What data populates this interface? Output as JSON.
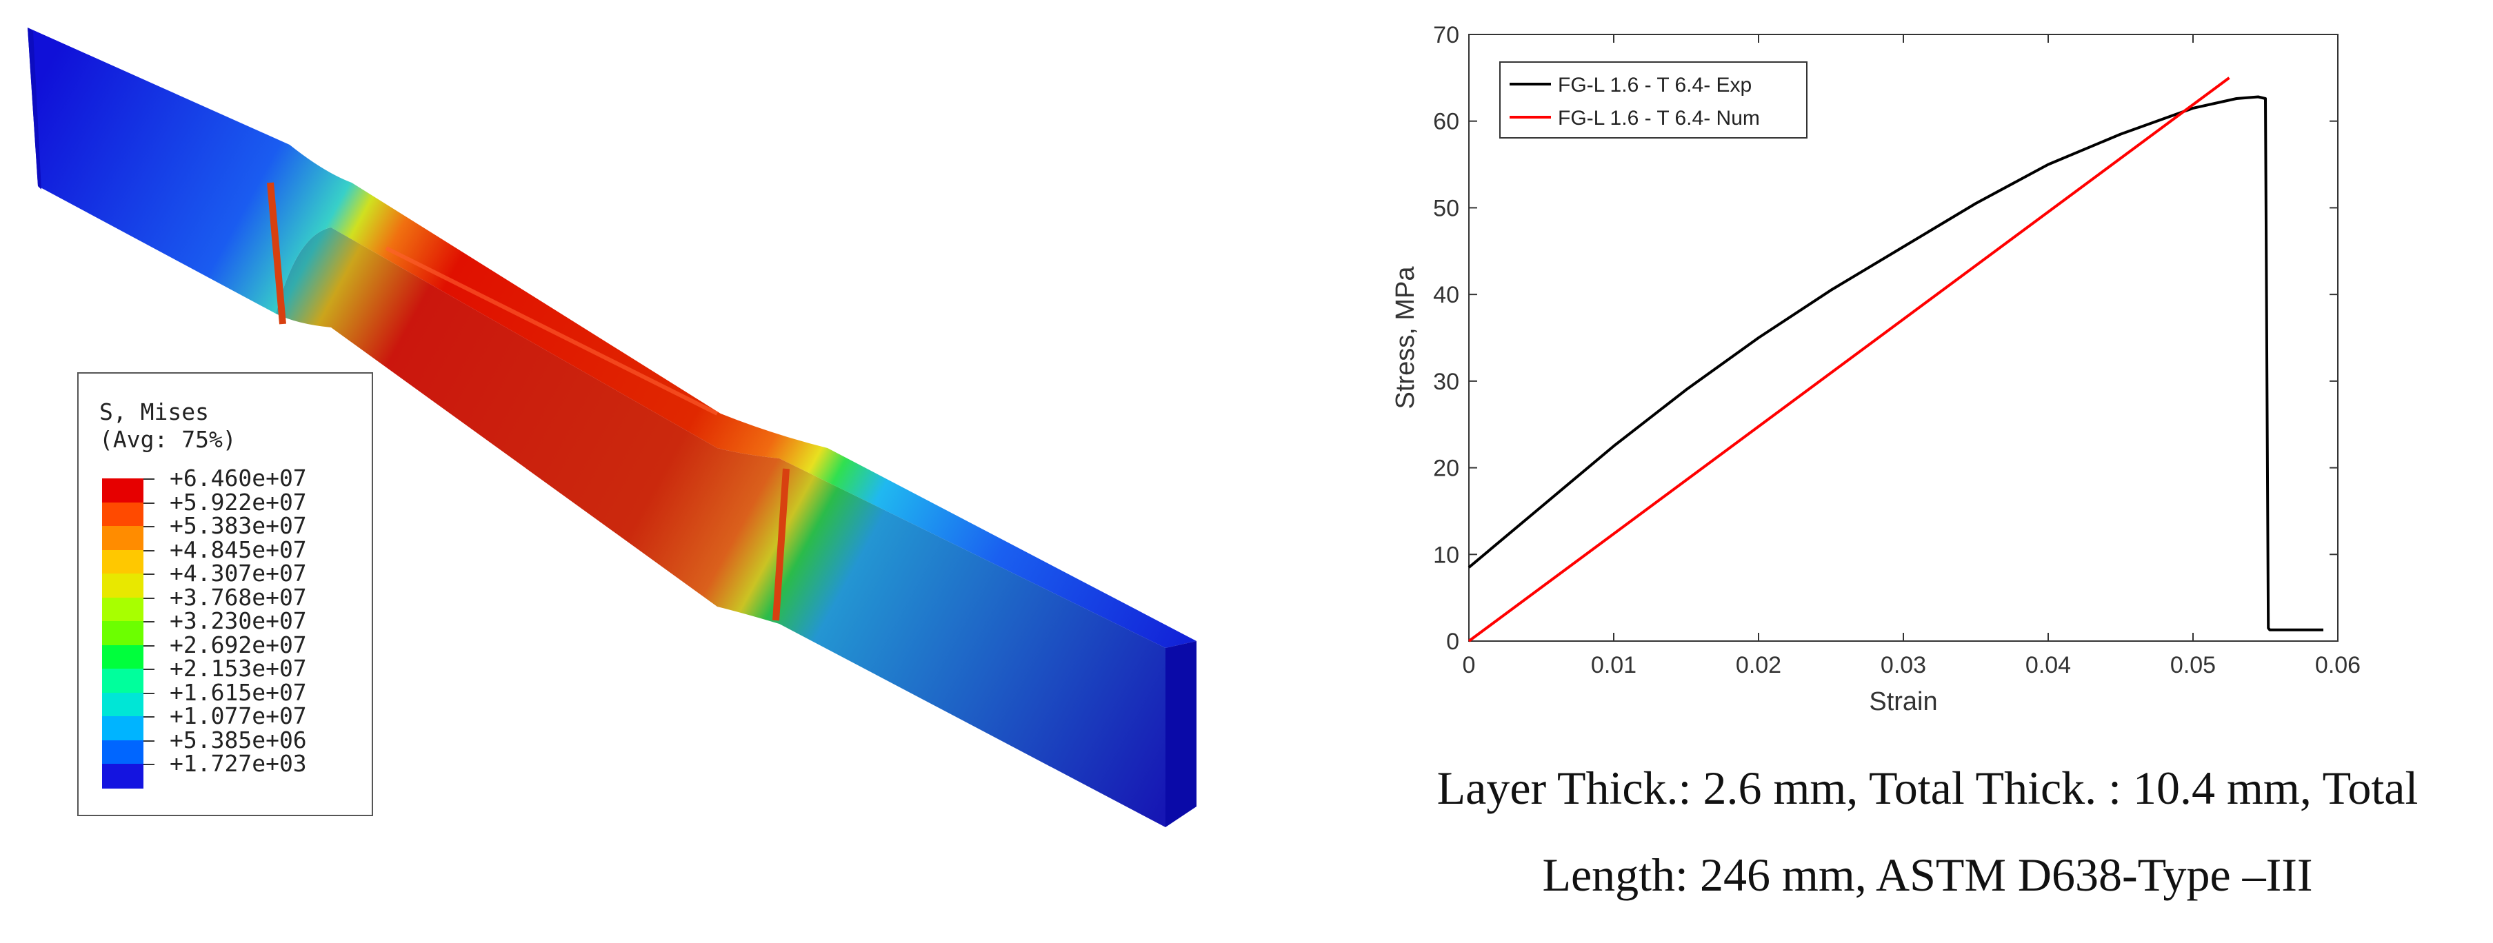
{
  "contour_legend": {
    "title_line1": "S, Mises",
    "title_line2": "(Avg: 75%)",
    "levels": [
      "+6.460e+07",
      "+5.922e+07",
      "+5.383e+07",
      "+4.845e+07",
      "+4.307e+07",
      "+3.768e+07",
      "+3.230e+07",
      "+2.692e+07",
      "+2.153e+07",
      "+1.615e+07",
      "+1.077e+07",
      "+5.385e+06",
      "+1.727e+03"
    ],
    "colors": [
      "#e60000",
      "#ff4a00",
      "#ff8c00",
      "#ffc800",
      "#e8e800",
      "#a8ff00",
      "#6cff00",
      "#00ff3c",
      "#00ff9c",
      "#00e6d6",
      "#00b4ff",
      "#0066ff",
      "#1414e0"
    ]
  },
  "chart_data": {
    "type": "line",
    "xlabel": "Strain",
    "ylabel": "Stress, MPa",
    "xlim": [
      0,
      0.06
    ],
    "ylim": [
      0,
      70
    ],
    "xticks": [
      "0",
      "0.01",
      "0.02",
      "0.03",
      "0.04",
      "0.05",
      "0.06"
    ],
    "yticks": [
      "0",
      "10",
      "20",
      "30",
      "40",
      "50",
      "60",
      "70"
    ],
    "legend_position": "top-left",
    "series": [
      {
        "name": "FG-L 1.6 - T 6.4- Exp",
        "color": "#000000",
        "x": [
          0,
          0.005,
          0.01,
          0.015,
          0.02,
          0.025,
          0.03,
          0.035,
          0.04,
          0.045,
          0.05,
          0.053,
          0.0545,
          0.055,
          0.0552,
          0.0553,
          0.059
        ],
        "y": [
          8.5,
          15.5,
          22.5,
          29,
          35,
          40.5,
          45.5,
          50.5,
          55,
          58.5,
          61.5,
          62.6,
          62.8,
          62.6,
          1.5,
          1.3,
          1.3
        ]
      },
      {
        "name": "FG-L 1.6 - T 6.4- Num",
        "color": "#ff0000",
        "x": [
          0,
          0.0525
        ],
        "y": [
          0,
          65
        ]
      }
    ]
  },
  "caption": {
    "line1": "Layer Thick.: 2.6 mm, Total Thick. : 10.4 mm, Total",
    "line2": "Length: 246 mm, ASTM D638-Type –III"
  }
}
